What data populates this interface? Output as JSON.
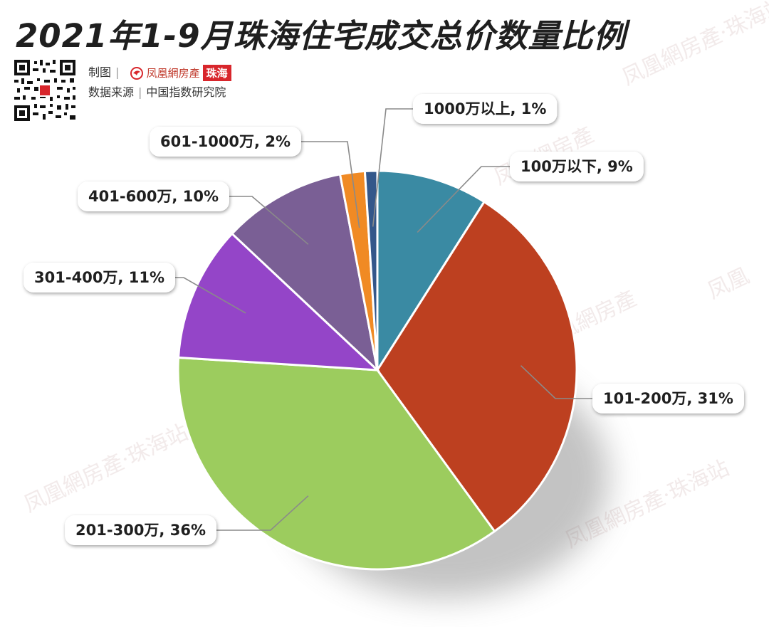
{
  "page": {
    "title": "2021年1-9月珠海住宅成交总价数量比例",
    "credit_label": "制图",
    "brand_name": "凤凰網房產",
    "brand_tag": "珠海",
    "source_label": "数据来源",
    "source_name": "中国指数研究院"
  },
  "colors": {
    "title": "#1f1f1f",
    "brand_red": "#d8262c"
  },
  "chart_data": {
    "type": "pie",
    "title": "2021年1-9月珠海住宅成交总价数量比例",
    "start": "12 o'clock, clockwise",
    "slices": [
      {
        "label": "100万以下",
        "value": 9,
        "display": "100万以下, 9%",
        "color": "#3a8aa3"
      },
      {
        "label": "101-200万",
        "value": 31,
        "display": "101-200万, 31%",
        "color": "#bd4020"
      },
      {
        "label": "201-300万",
        "value": 36,
        "display": "201-300万, 36%",
        "color": "#9ccc5e"
      },
      {
        "label": "301-400万",
        "value": 11,
        "display": "301-400万, 11%",
        "color": "#9445c8"
      },
      {
        "label": "401-600万",
        "value": 10,
        "display": "401-600万, 10%",
        "color": "#7a5f95"
      },
      {
        "label": "601-1000万",
        "value": 2,
        "display": "601-1000万, 2%",
        "color": "#f08a24"
      },
      {
        "label": "1000万以上",
        "value": 1,
        "display": "1000万以上, 1%",
        "color": "#34578a"
      }
    ]
  }
}
